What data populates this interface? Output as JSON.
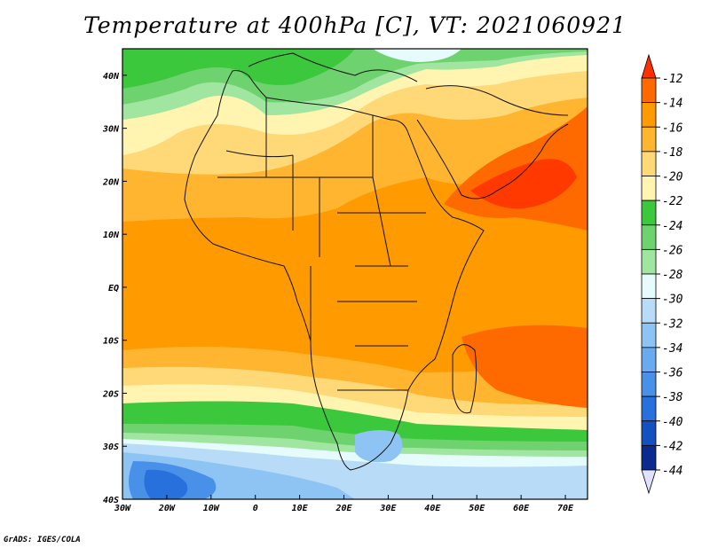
{
  "title": "Temperature at 400hPa [C], VT: 2021060921",
  "credit": "GrADS: IGES/COLA",
  "map": {
    "lon_range": [
      -30,
      75
    ],
    "lat_range": [
      -40,
      45
    ],
    "lon_ticks": [
      {
        "value": -30,
        "label": "30W"
      },
      {
        "value": -20,
        "label": "20W"
      },
      {
        "value": -10,
        "label": "10W"
      },
      {
        "value": 0,
        "label": "0"
      },
      {
        "value": 10,
        "label": "10E"
      },
      {
        "value": 20,
        "label": "20E"
      },
      {
        "value": 30,
        "label": "30E"
      },
      {
        "value": 40,
        "label": "40E"
      },
      {
        "value": 50,
        "label": "50E"
      },
      {
        "value": 60,
        "label": "60E"
      },
      {
        "value": 70,
        "label": "70E"
      }
    ],
    "lat_ticks": [
      {
        "value": 40,
        "label": "40N"
      },
      {
        "value": 30,
        "label": "30N"
      },
      {
        "value": 20,
        "label": "20N"
      },
      {
        "value": 10,
        "label": "10N"
      },
      {
        "value": 0,
        "label": "EQ"
      },
      {
        "value": -10,
        "label": "10S"
      },
      {
        "value": -20,
        "label": "20S"
      },
      {
        "value": -30,
        "label": "30S"
      },
      {
        "value": -40,
        "label": "40S"
      }
    ]
  },
  "colorbar": {
    "levels": [
      -12,
      -14,
      -16,
      -18,
      -20,
      -22,
      -24,
      -26,
      -28,
      -30,
      -32,
      -34,
      -36,
      -38,
      -40,
      -42,
      -44
    ],
    "colors": [
      "#ff3000",
      "#ff6a00",
      "#ff9a00",
      "#ffb530",
      "#ffd878",
      "#fff4b0",
      "#3cc83c",
      "#6ed26e",
      "#a0e6a0",
      "#e6fcfc",
      "#b8dcf8",
      "#8ec4f4",
      "#6aaaee",
      "#4890e8",
      "#2870dc",
      "#1450c0",
      "#0a2a90",
      "#e0e0ff"
    ]
  }
}
